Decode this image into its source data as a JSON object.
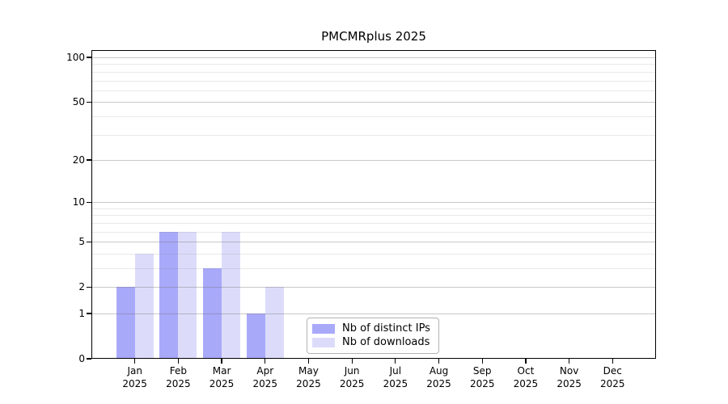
{
  "chart_data": {
    "type": "bar",
    "title": "PMCMRplus 2025",
    "year_label": "2025",
    "categories": [
      "Jan",
      "Feb",
      "Mar",
      "Apr",
      "May",
      "Jun",
      "Jul",
      "Aug",
      "Sep",
      "Oct",
      "Nov",
      "Dec"
    ],
    "series": [
      {
        "name": "Nb of distinct IPs",
        "color": "#a9a9fa",
        "values": [
          2,
          6,
          3,
          1,
          0,
          0,
          0,
          0,
          0,
          0,
          0,
          0
        ]
      },
      {
        "name": "Nb of downloads",
        "color": "#dcdcfa",
        "values": [
          4,
          6,
          6,
          2,
          0,
          0,
          0,
          0,
          0,
          0,
          0,
          0
        ]
      }
    ],
    "y_axis": {
      "scale": "log1p",
      "major_ticks": [
        0,
        1,
        2,
        5,
        10,
        20,
        50,
        100
      ],
      "minor_gridlines": [
        3,
        4,
        6,
        7,
        8,
        9,
        30,
        40,
        60,
        70,
        80,
        90
      ],
      "max": 112
    },
    "xlabel": "",
    "ylabel": "",
    "grid": "horizontal",
    "legend": {
      "position": "lower center inside",
      "items": [
        "Nb of distinct IPs",
        "Nb of downloads"
      ]
    }
  },
  "colors": {
    "background": "#ffffff",
    "bar_distinct_ips": "#a9a9fa",
    "bar_downloads": "#dcdcfa",
    "spine": "#000000",
    "text": "#000000",
    "legend_border": "#b3b3b3"
  }
}
